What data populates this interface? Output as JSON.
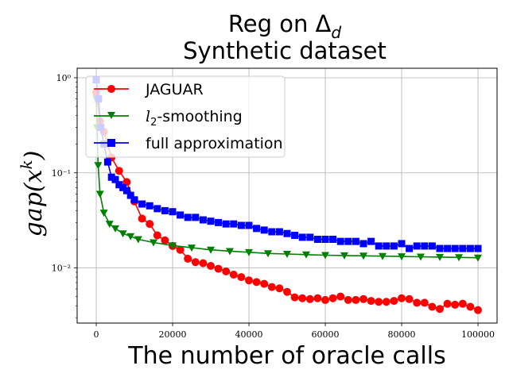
{
  "chart_data": {
    "type": "line",
    "title_line1": "Reg on Δ",
    "title_sub": "d",
    "title_line2": "Synthetic dataset",
    "xlabel": "The number of oracle calls",
    "ylabel": "gap(x",
    "ylabel_sup": "k",
    "ylabel_close": ")",
    "xlim": [
      -5000,
      105000
    ],
    "ylim_log10": [
      -2.58,
      0.1
    ],
    "yscale": "log",
    "grid": true,
    "legend_position": "top-left",
    "x_ticks": [
      0,
      20000,
      40000,
      60000,
      80000,
      100000
    ],
    "x_tick_labels": [
      "0",
      "20000",
      "40000",
      "60000",
      "80000",
      "100000"
    ],
    "y_ticks": [
      1,
      0.1,
      0.01
    ],
    "y_tick_labels": [
      "10⁰",
      "10⁻¹",
      "10⁻²"
    ],
    "series": [
      {
        "name": "JAGUAR",
        "color": "#ff0000",
        "marker": "circle",
        "x": [
          0,
          1000,
          2000,
          4000,
          6000,
          8000,
          10000,
          12000,
          14000,
          16000,
          18000,
          20000,
          22000,
          24000,
          26000,
          28000,
          30000,
          32000,
          34000,
          36000,
          38000,
          40000,
          42000,
          44000,
          46000,
          48000,
          50000,
          52000,
          54000,
          56000,
          58000,
          60000,
          62000,
          64000,
          66000,
          68000,
          70000,
          72000,
          74000,
          76000,
          78000,
          80000,
          82000,
          84000,
          86000,
          88000,
          90000,
          92000,
          94000,
          96000,
          98000,
          100000
        ],
        "y": [
          0.7,
          0.35,
          0.27,
          0.145,
          0.105,
          0.08,
          0.05,
          0.033,
          0.029,
          0.022,
          0.0195,
          0.017,
          0.0155,
          0.0125,
          0.0115,
          0.0112,
          0.0105,
          0.0098,
          0.0092,
          0.0085,
          0.008,
          0.0074,
          0.0071,
          0.0068,
          0.0063,
          0.0061,
          0.0056,
          0.0049,
          0.0048,
          0.0047,
          0.0048,
          0.0046,
          0.0048,
          0.005,
          0.0046,
          0.0046,
          0.0047,
          0.0045,
          0.0044,
          0.0044,
          0.0045,
          0.0048,
          0.0047,
          0.0043,
          0.0043,
          0.0039,
          0.0037,
          0.0042,
          0.0041,
          0.0042,
          0.0039,
          0.0036
        ]
      },
      {
        "name": "l2-smoothing",
        "name_main": "l",
        "name_sub": "2",
        "name_rest": "-smoothing",
        "color": "#008000",
        "marker": "triangle-down",
        "x": [
          0,
          200,
          500,
          1000,
          2000,
          3500,
          5000,
          7000,
          9000,
          11000,
          15000,
          20000,
          25000,
          30000,
          35000,
          40000,
          45000,
          50000,
          55000,
          60000,
          65000,
          70000,
          75000,
          80000,
          85000,
          90000,
          95000,
          100000
        ],
        "y": [
          0.6,
          0.3,
          0.12,
          0.06,
          0.038,
          0.029,
          0.026,
          0.023,
          0.0215,
          0.02,
          0.0185,
          0.0172,
          0.0163,
          0.0155,
          0.015,
          0.0146,
          0.0142,
          0.014,
          0.0138,
          0.0136,
          0.0135,
          0.0134,
          0.0133,
          0.0132,
          0.0131,
          0.013,
          0.0129,
          0.0128
        ]
      },
      {
        "name": "full approximation",
        "color": "#0000ff",
        "marker": "square",
        "x": [
          0,
          600,
          1200,
          2000,
          3000,
          4000,
          5000,
          6000,
          7000,
          8000,
          9000,
          10000,
          12000,
          14000,
          16000,
          18000,
          20000,
          22000,
          24000,
          26000,
          28000,
          30000,
          32000,
          34000,
          36000,
          38000,
          40000,
          42000,
          44000,
          46000,
          48000,
          50000,
          52000,
          54000,
          56000,
          58000,
          60000,
          62000,
          64000,
          66000,
          68000,
          70000,
          72000,
          74000,
          76000,
          78000,
          80000,
          82000,
          84000,
          86000,
          88000,
          90000,
          92000,
          94000,
          96000,
          98000,
          100000
        ],
        "y": [
          0.95,
          0.6,
          0.3,
          0.2,
          0.13,
          0.09,
          0.085,
          0.075,
          0.07,
          0.065,
          0.058,
          0.052,
          0.047,
          0.045,
          0.042,
          0.04,
          0.039,
          0.036,
          0.034,
          0.034,
          0.032,
          0.031,
          0.03,
          0.029,
          0.029,
          0.028,
          0.028,
          0.026,
          0.025,
          0.024,
          0.024,
          0.023,
          0.022,
          0.021,
          0.021,
          0.02,
          0.02,
          0.02,
          0.019,
          0.019,
          0.019,
          0.018,
          0.019,
          0.017,
          0.017,
          0.017,
          0.018,
          0.016,
          0.017,
          0.017,
          0.017,
          0.016,
          0.016,
          0.016,
          0.016,
          0.016,
          0.016
        ]
      }
    ]
  }
}
